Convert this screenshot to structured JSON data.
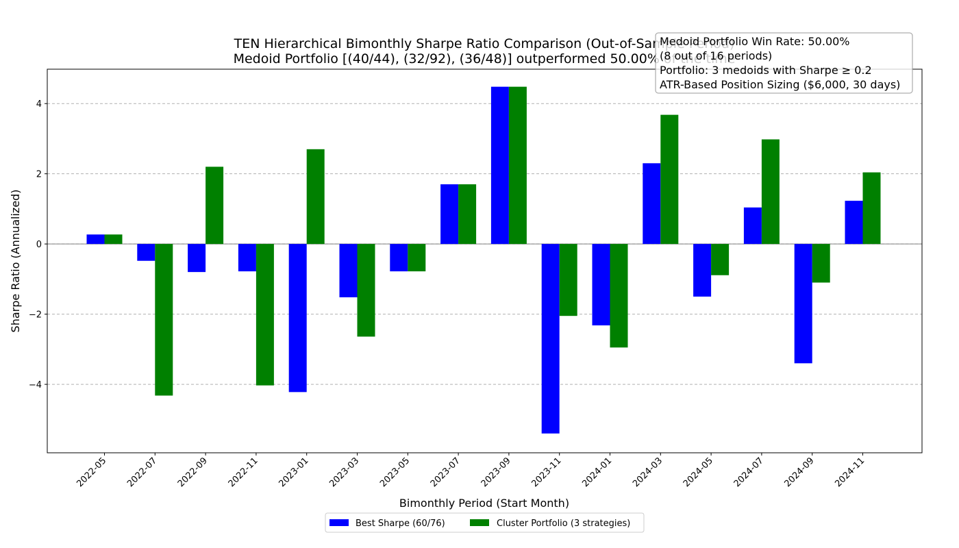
{
  "chart_data": {
    "type": "bar",
    "title_line1": "TEN Hierarchical Bimonthly Sharpe Ratio Comparison (Out-of-Sample Period)",
    "title_line2": "Medoid Portfolio [(40/44), (32/92), (36/48)] outperformed 50.00% of the time",
    "xlabel": "Bimonthly Period (Start Month)",
    "ylabel": "Sharpe Ratio (Annualized)",
    "ylim": [
      -5.95,
      4.98
    ],
    "yticks": [
      -4,
      -2,
      0,
      2,
      4
    ],
    "ytick_labels": [
      "−4",
      "−2",
      "0",
      "2",
      "4"
    ],
    "grid": "horizontal dashed",
    "legend_position": "bottom-center",
    "categories": [
      "2022-05",
      "2022-07",
      "2022-09",
      "2022-11",
      "2023-01",
      "2023-03",
      "2023-05",
      "2023-07",
      "2023-09",
      "2023-11",
      "2024-01",
      "2024-03",
      "2024-05",
      "2024-07",
      "2024-09",
      "2024-11"
    ],
    "series": [
      {
        "name": "Best Sharpe (60/76)",
        "color": "#0000ff",
        "values": [
          0.27,
          -0.48,
          -0.8,
          -0.78,
          -4.22,
          -1.52,
          -0.78,
          1.7,
          4.48,
          -5.4,
          -2.32,
          2.3,
          -1.5,
          1.04,
          -3.4,
          1.23
        ]
      },
      {
        "name": "Cluster Portfolio (3 strategies)",
        "color": "#008000",
        "values": [
          0.27,
          -4.32,
          2.2,
          -4.03,
          2.7,
          -2.64,
          -0.78,
          1.7,
          4.48,
          -2.05,
          -2.95,
          3.68,
          -0.89,
          2.98,
          -1.1,
          2.04
        ]
      }
    ],
    "annotation_lines": [
      "Medoid Portfolio Win Rate: 50.00%",
      "(8 out of 16 periods)",
      "Portfolio: 3 medoids with Sharpe ≥ 0.2",
      "ATR-Based Position Sizing ($6,000, 30 days)"
    ]
  }
}
